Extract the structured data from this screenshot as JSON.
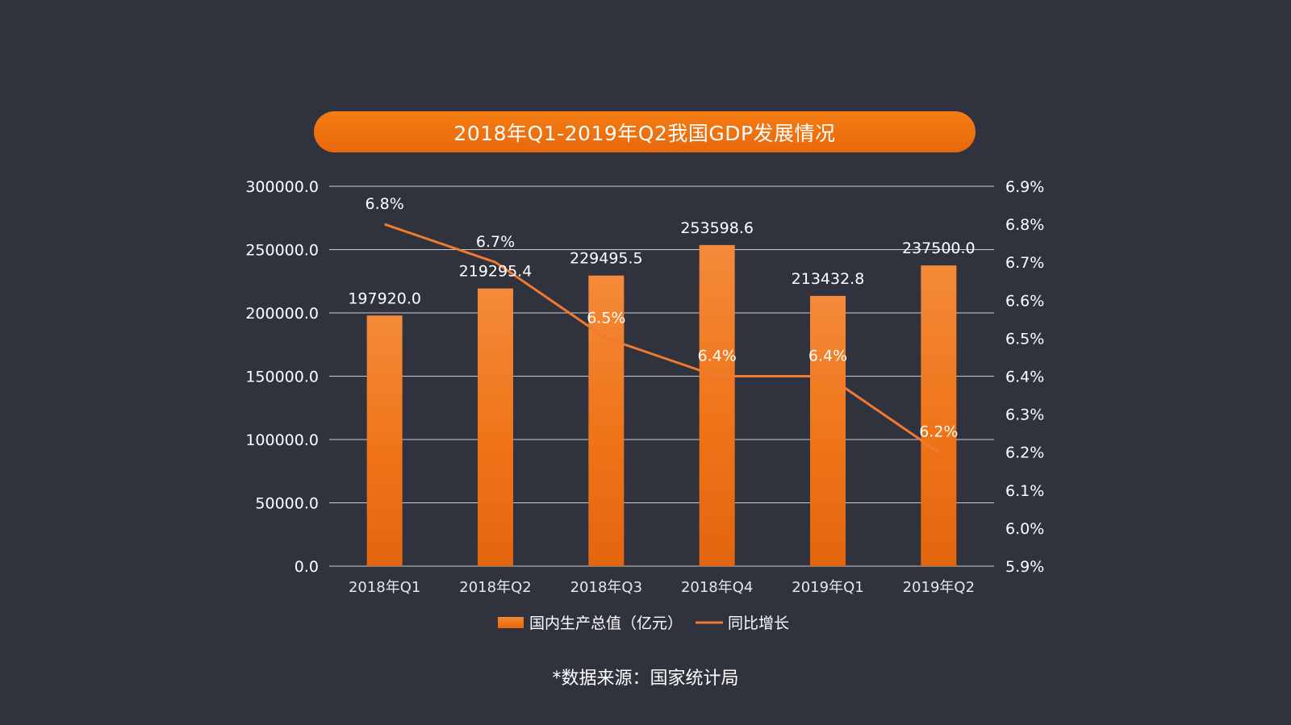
{
  "header": {
    "title": "2018年Q1-2019年Q2我国GDP发展情况"
  },
  "footer": {
    "source": "*数据来源：国家统计局"
  },
  "colors": {
    "background": "#30333d",
    "bar_top": "#f48a3a",
    "bar_bottom": "#e3660f",
    "line": "#ef7a30",
    "grid": "#c9cbd0",
    "title_pill": "#f27412"
  },
  "chart_data": {
    "type": "bar",
    "title": "2018年Q1-2019年Q2我国GDP发展情况",
    "categories": [
      "2018年Q1",
      "2018年Q2",
      "2018年Q3",
      "2018年Q4",
      "2019年Q1",
      "2019年Q2"
    ],
    "series": [
      {
        "name": "国内生产总值（亿元）",
        "type": "bar",
        "axis": "left",
        "values": [
          197920.0,
          219295.4,
          229495.5,
          253598.6,
          213432.8,
          237500.0
        ],
        "labels": [
          "197920.0",
          "219295.4",
          "229495.5",
          "253598.6",
          "213432.8",
          "237500.0"
        ]
      },
      {
        "name": "同比增长",
        "type": "line",
        "axis": "right",
        "values": [
          6.8,
          6.7,
          6.5,
          6.4,
          6.4,
          6.2
        ],
        "labels": [
          "6.8%",
          "6.7%",
          "6.5%",
          "6.4%",
          "6.4%",
          "6.2%"
        ]
      }
    ],
    "y_left": {
      "min": 0,
      "max": 300000,
      "ticks": [
        0,
        50000,
        100000,
        150000,
        200000,
        250000,
        300000
      ],
      "tick_labels": [
        "0.0",
        "50000.0",
        "100000.0",
        "150000.0",
        "200000.0",
        "250000.0",
        "300000.0"
      ]
    },
    "y_right": {
      "min": 5.9,
      "max": 6.9,
      "ticks": [
        5.9,
        6.0,
        6.1,
        6.2,
        6.3,
        6.4,
        6.5,
        6.6,
        6.7,
        6.8,
        6.9
      ],
      "tick_labels": [
        "5.9%",
        "6.0%",
        "6.1%",
        "6.2%",
        "6.3%",
        "6.4%",
        "6.5%",
        "6.6%",
        "6.7%",
        "6.8%",
        "6.9%"
      ]
    },
    "grid": true,
    "legend": {
      "position": "bottom",
      "entries": [
        "国内生产总值（亿元）",
        "同比增长"
      ]
    }
  }
}
